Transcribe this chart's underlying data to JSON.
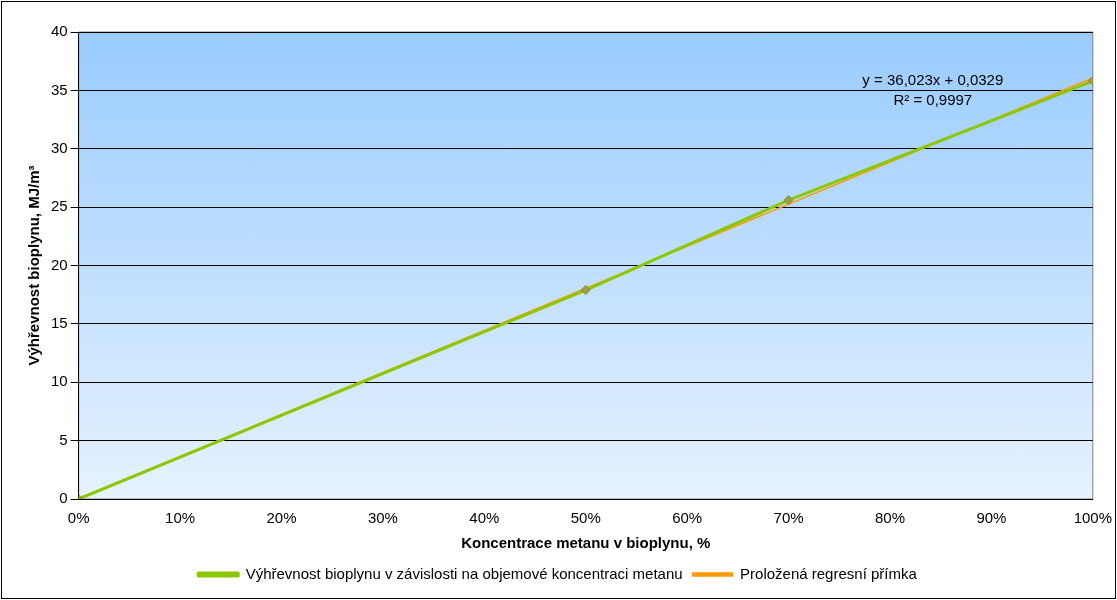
{
  "chart_data": {
    "type": "line",
    "xlabel": "Koncentrace metanu v bioplynu, %",
    "ylabel": "Výhřevnost bioplynu, MJ/m³",
    "series": [
      {
        "name": "Výhřevnost bioplynu v závislosti na objemové koncentraci metanu",
        "color": "#8cc800",
        "x": [
          0,
          0.5,
          0.7,
          1
        ],
        "values": [
          0,
          17.9,
          25.6,
          35.8
        ],
        "marker": "diamond"
      },
      {
        "name": "Proložená regresní přímka",
        "color": "#ff9900",
        "x": [
          0,
          1
        ],
        "values": [
          0.03,
          36.06
        ]
      }
    ],
    "xlim": [
      0,
      1
    ],
    "xticks": [
      {
        "value": 0,
        "label": "0%"
      },
      {
        "value": 0.1,
        "label": "10%"
      },
      {
        "value": 0.2,
        "label": "20%"
      },
      {
        "value": 0.3,
        "label": "30%"
      },
      {
        "value": 0.4,
        "label": "40%"
      },
      {
        "value": 0.5,
        "label": "50%"
      },
      {
        "value": 0.6,
        "label": "60%"
      },
      {
        "value": 0.7,
        "label": "70%"
      },
      {
        "value": 0.8,
        "label": "80%"
      },
      {
        "value": 0.9,
        "label": "90%"
      },
      {
        "value": 1,
        "label": "100%"
      }
    ],
    "ylim": [
      0,
      40
    ],
    "yticks": [
      0,
      5,
      10,
      15,
      20,
      25,
      30,
      35,
      40
    ],
    "grid": "y",
    "legend": "bottom",
    "line_style": "solid",
    "annotations": [
      "y = 36,023x + 0,0329",
      "R² = 0,9997"
    ]
  }
}
